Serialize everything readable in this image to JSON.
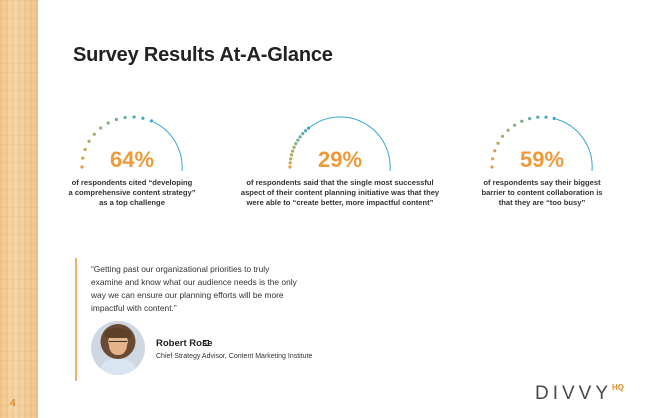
{
  "page": {
    "number": "4",
    "title": "Survey Results At-A-Glance"
  },
  "colors": {
    "accent_orange": "#ee9a3a",
    "accent_blue": "#3aa6cf",
    "accent_green": "#8cb07a",
    "bar_orange": "#f0b16b"
  },
  "stats": [
    {
      "value": "64%",
      "description": "of respondents cited “developing\na comprehensive content strategy”\nas a top challenge"
    },
    {
      "value": "29%",
      "description": "of respondents said that the single most successful\naspect of their content planning initiative was that they\nwere able to “create better, more impactful content”"
    },
    {
      "value": "59%",
      "description": "of respondents say their biggest\nbarrier to content collaboration is\nthat they are “too busy”"
    }
  ],
  "quote": {
    "text": "“Getting past our organizational priorities to truly\nexamine and know what our audience needs is the only\nway we can ensure our planning efforts will be more\nimpactful with content.”",
    "author": "Robert Rose",
    "author_icon": "linkedin-icon",
    "role": "Chief Strategy Advisor, Content Marketing Institute"
  },
  "logo": {
    "text": "DIVVY",
    "suffix": "HQ"
  }
}
